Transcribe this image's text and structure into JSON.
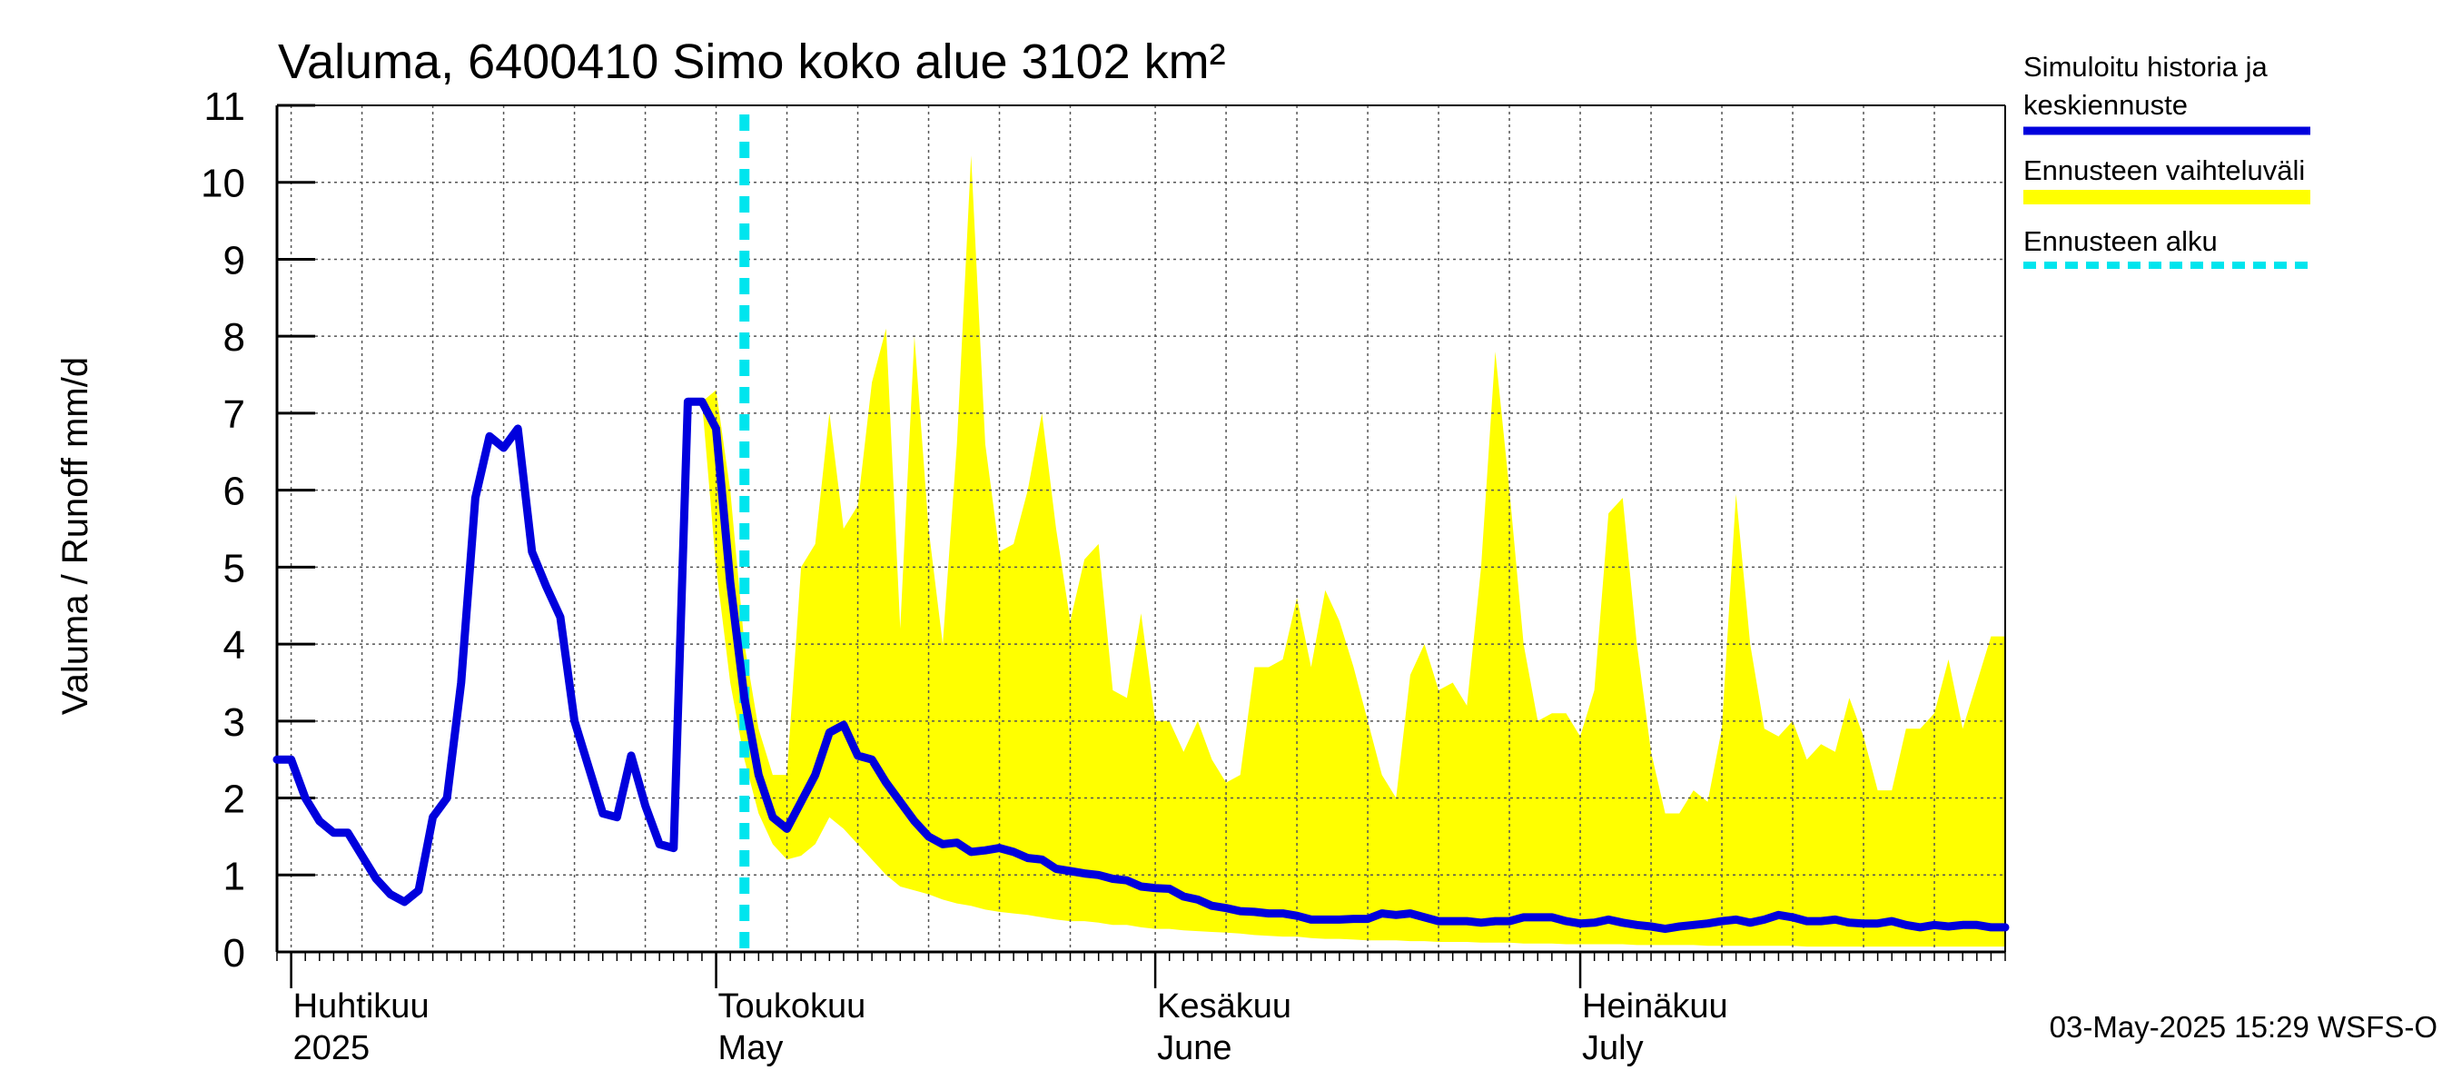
{
  "chart_data": {
    "type": "area",
    "title": "Valuma, 6400410 Simo koko alue 3102 km²",
    "ylabel": "Valuma / Runoff     mm/d",
    "ylim": [
      0,
      11
    ],
    "yticks": [
      0,
      1,
      2,
      3,
      4,
      5,
      6,
      7,
      8,
      9,
      10,
      11
    ],
    "xlim": [
      "2025-03-31",
      "2025-07-31"
    ],
    "forecast_start": "2025-05-03",
    "grid": true,
    "legend_placement": "right",
    "month_labels": [
      {
        "date": "2025-04-01",
        "fi": "Huhtikuu",
        "en": "2025"
      },
      {
        "date": "2025-05-01",
        "fi": "Toukokuu",
        "en": "May"
      },
      {
        "date": "2025-06-01",
        "fi": "Kesäkuu",
        "en": "June"
      },
      {
        "date": "2025-07-01",
        "fi": "Heinäkuu",
        "en": "July"
      }
    ],
    "series": [
      {
        "name": "Simuloitu historia ja keskiennuste",
        "color": "#0000dd",
        "points": [
          [
            "2025-03-31",
            2.5
          ],
          [
            "2025-04-01",
            2.5
          ],
          [
            "2025-04-02",
            2.0
          ],
          [
            "2025-04-03",
            1.7
          ],
          [
            "2025-04-04",
            1.55
          ],
          [
            "2025-04-05",
            1.55
          ],
          [
            "2025-04-06",
            1.25
          ],
          [
            "2025-04-07",
            0.95
          ],
          [
            "2025-04-08",
            0.75
          ],
          [
            "2025-04-09",
            0.65
          ],
          [
            "2025-04-10",
            0.8
          ],
          [
            "2025-04-11",
            1.75
          ],
          [
            "2025-04-12",
            2.0
          ],
          [
            "2025-04-13",
            3.5
          ],
          [
            "2025-04-14",
            5.9
          ],
          [
            "2025-04-15",
            6.7
          ],
          [
            "2025-04-16",
            6.55
          ],
          [
            "2025-04-17",
            6.8
          ],
          [
            "2025-04-18",
            5.2
          ],
          [
            "2025-04-19",
            4.75
          ],
          [
            "2025-04-20",
            4.35
          ],
          [
            "2025-04-21",
            3.0
          ],
          [
            "2025-04-22",
            2.4
          ],
          [
            "2025-04-23",
            1.8
          ],
          [
            "2025-04-24",
            1.75
          ],
          [
            "2025-04-25",
            2.55
          ],
          [
            "2025-04-26",
            1.9
          ],
          [
            "2025-04-27",
            1.4
          ],
          [
            "2025-04-28",
            1.35
          ],
          [
            "2025-04-29",
            7.15
          ],
          [
            "2025-04-30",
            7.15
          ],
          [
            "2025-05-01",
            6.8
          ],
          [
            "2025-05-02",
            4.8
          ],
          [
            "2025-05-03",
            3.3
          ],
          [
            "2025-05-04",
            2.3
          ],
          [
            "2025-05-05",
            1.75
          ],
          [
            "2025-05-06",
            1.6
          ],
          [
            "2025-05-07",
            1.95
          ],
          [
            "2025-05-08",
            2.3
          ],
          [
            "2025-05-09",
            2.85
          ],
          [
            "2025-05-10",
            2.95
          ],
          [
            "2025-05-11",
            2.55
          ],
          [
            "2025-05-12",
            2.5
          ],
          [
            "2025-05-13",
            2.2
          ],
          [
            "2025-05-14",
            1.95
          ],
          [
            "2025-05-15",
            1.7
          ],
          [
            "2025-05-16",
            1.5
          ],
          [
            "2025-05-17",
            1.4
          ],
          [
            "2025-05-18",
            1.42
          ],
          [
            "2025-05-19",
            1.3
          ],
          [
            "2025-05-20",
            1.32
          ],
          [
            "2025-05-21",
            1.35
          ],
          [
            "2025-05-22",
            1.3
          ],
          [
            "2025-05-23",
            1.22
          ],
          [
            "2025-05-24",
            1.2
          ],
          [
            "2025-05-25",
            1.08
          ],
          [
            "2025-05-26",
            1.05
          ],
          [
            "2025-05-27",
            1.02
          ],
          [
            "2025-05-28",
            1.0
          ],
          [
            "2025-05-29",
            0.95
          ],
          [
            "2025-05-30",
            0.93
          ],
          [
            "2025-05-31",
            0.85
          ],
          [
            "2025-06-01",
            0.83
          ],
          [
            "2025-06-02",
            0.82
          ],
          [
            "2025-06-03",
            0.72
          ],
          [
            "2025-06-04",
            0.68
          ],
          [
            "2025-06-05",
            0.6
          ],
          [
            "2025-06-06",
            0.57
          ],
          [
            "2025-06-07",
            0.53
          ],
          [
            "2025-06-08",
            0.52
          ],
          [
            "2025-06-09",
            0.5
          ],
          [
            "2025-06-10",
            0.5
          ],
          [
            "2025-06-11",
            0.47
          ],
          [
            "2025-06-12",
            0.42
          ],
          [
            "2025-06-13",
            0.42
          ],
          [
            "2025-06-14",
            0.42
          ],
          [
            "2025-06-15",
            0.43
          ],
          [
            "2025-06-16",
            0.43
          ],
          [
            "2025-06-17",
            0.5
          ],
          [
            "2025-06-18",
            0.48
          ],
          [
            "2025-06-19",
            0.5
          ],
          [
            "2025-06-20",
            0.45
          ],
          [
            "2025-06-21",
            0.4
          ],
          [
            "2025-06-22",
            0.4
          ],
          [
            "2025-06-23",
            0.4
          ],
          [
            "2025-06-24",
            0.38
          ],
          [
            "2025-06-25",
            0.4
          ],
          [
            "2025-06-26",
            0.4
          ],
          [
            "2025-06-27",
            0.45
          ],
          [
            "2025-06-28",
            0.45
          ],
          [
            "2025-06-29",
            0.45
          ],
          [
            "2025-06-30",
            0.4
          ],
          [
            "2025-07-01",
            0.37
          ],
          [
            "2025-07-02",
            0.38
          ],
          [
            "2025-07-03",
            0.42
          ],
          [
            "2025-07-04",
            0.38
          ],
          [
            "2025-07-05",
            0.35
          ],
          [
            "2025-07-06",
            0.33
          ],
          [
            "2025-07-07",
            0.3
          ],
          [
            "2025-07-08",
            0.33
          ],
          [
            "2025-07-09",
            0.35
          ],
          [
            "2025-07-10",
            0.37
          ],
          [
            "2025-07-11",
            0.4
          ],
          [
            "2025-07-12",
            0.42
          ],
          [
            "2025-07-13",
            0.38
          ],
          [
            "2025-07-14",
            0.42
          ],
          [
            "2025-07-15",
            0.48
          ],
          [
            "2025-07-16",
            0.45
          ],
          [
            "2025-07-17",
            0.4
          ],
          [
            "2025-07-18",
            0.4
          ],
          [
            "2025-07-19",
            0.42
          ],
          [
            "2025-07-20",
            0.38
          ],
          [
            "2025-07-21",
            0.37
          ],
          [
            "2025-07-22",
            0.37
          ],
          [
            "2025-07-23",
            0.4
          ],
          [
            "2025-07-24",
            0.35
          ],
          [
            "2025-07-25",
            0.32
          ],
          [
            "2025-07-26",
            0.35
          ],
          [
            "2025-07-27",
            0.33
          ],
          [
            "2025-07-28",
            0.35
          ],
          [
            "2025-07-29",
            0.35
          ],
          [
            "2025-07-30",
            0.32
          ],
          [
            "2025-07-31",
            0.32
          ]
        ]
      },
      {
        "name": "Ennusteen vaihteluväli",
        "color": "#ffff00",
        "type": "band",
        "points": [
          [
            "2025-04-30",
            7.15,
            7.15
          ],
          [
            "2025-05-01",
            5.0,
            7.3
          ],
          [
            "2025-05-02",
            3.5,
            6.0
          ],
          [
            "2025-05-03",
            2.5,
            4.0
          ],
          [
            "2025-05-04",
            1.8,
            2.9
          ],
          [
            "2025-05-05",
            1.4,
            2.3
          ],
          [
            "2025-05-06",
            1.2,
            2.3
          ],
          [
            "2025-05-07",
            1.25,
            5.0
          ],
          [
            "2025-05-08",
            1.4,
            5.3
          ],
          [
            "2025-05-09",
            1.75,
            7.0
          ],
          [
            "2025-05-10",
            1.6,
            5.5
          ],
          [
            "2025-05-11",
            1.4,
            5.8
          ],
          [
            "2025-05-12",
            1.2,
            7.4
          ],
          [
            "2025-05-13",
            1.0,
            8.1
          ],
          [
            "2025-05-14",
            0.85,
            4.2
          ],
          [
            "2025-05-15",
            0.8,
            8.0
          ],
          [
            "2025-05-16",
            0.75,
            5.5
          ],
          [
            "2025-05-17",
            0.68,
            4.0
          ],
          [
            "2025-05-18",
            0.63,
            6.6
          ],
          [
            "2025-05-19",
            0.6,
            10.35
          ],
          [
            "2025-05-20",
            0.55,
            6.6
          ],
          [
            "2025-05-21",
            0.52,
            5.2
          ],
          [
            "2025-05-22",
            0.5,
            5.3
          ],
          [
            "2025-05-23",
            0.48,
            6.0
          ],
          [
            "2025-05-24",
            0.45,
            7.0
          ],
          [
            "2025-05-25",
            0.42,
            5.5
          ],
          [
            "2025-05-26",
            0.4,
            4.3
          ],
          [
            "2025-05-27",
            0.4,
            5.1
          ],
          [
            "2025-05-28",
            0.38,
            5.3
          ],
          [
            "2025-05-29",
            0.35,
            3.4
          ],
          [
            "2025-05-30",
            0.35,
            3.3
          ],
          [
            "2025-05-31",
            0.32,
            4.4
          ],
          [
            "2025-06-01",
            0.3,
            3.0
          ],
          [
            "2025-06-02",
            0.3,
            3.0
          ],
          [
            "2025-06-03",
            0.28,
            2.6
          ],
          [
            "2025-06-04",
            0.27,
            3.0
          ],
          [
            "2025-06-05",
            0.26,
            2.5
          ],
          [
            "2025-06-06",
            0.25,
            2.2
          ],
          [
            "2025-06-07",
            0.24,
            2.3
          ],
          [
            "2025-06-08",
            0.22,
            3.7
          ],
          [
            "2025-06-09",
            0.21,
            3.7
          ],
          [
            "2025-06-10",
            0.2,
            3.8
          ],
          [
            "2025-06-11",
            0.2,
            4.6
          ],
          [
            "2025-06-12",
            0.18,
            3.7
          ],
          [
            "2025-06-13",
            0.17,
            4.7
          ],
          [
            "2025-06-14",
            0.17,
            4.3
          ],
          [
            "2025-06-15",
            0.16,
            3.7
          ],
          [
            "2025-06-16",
            0.15,
            3.0
          ],
          [
            "2025-06-17",
            0.15,
            2.3
          ],
          [
            "2025-06-18",
            0.15,
            2.0
          ],
          [
            "2025-06-19",
            0.14,
            3.6
          ],
          [
            "2025-06-20",
            0.14,
            4.0
          ],
          [
            "2025-06-21",
            0.13,
            3.4
          ],
          [
            "2025-06-22",
            0.13,
            3.5
          ],
          [
            "2025-06-23",
            0.13,
            3.2
          ],
          [
            "2025-06-24",
            0.12,
            5.0
          ],
          [
            "2025-06-25",
            0.12,
            7.8
          ],
          [
            "2025-06-26",
            0.12,
            6.0
          ],
          [
            "2025-06-27",
            0.11,
            4.0
          ],
          [
            "2025-06-28",
            0.11,
            3.0
          ],
          [
            "2025-06-29",
            0.11,
            3.1
          ],
          [
            "2025-06-30",
            0.1,
            3.1
          ],
          [
            "2025-07-01",
            0.1,
            2.8
          ],
          [
            "2025-07-02",
            0.1,
            3.4
          ],
          [
            "2025-07-03",
            0.1,
            5.7
          ],
          [
            "2025-07-04",
            0.1,
            5.9
          ],
          [
            "2025-07-05",
            0.09,
            4.0
          ],
          [
            "2025-07-06",
            0.09,
            2.6
          ],
          [
            "2025-07-07",
            0.09,
            1.8
          ],
          [
            "2025-07-08",
            0.09,
            1.8
          ],
          [
            "2025-07-09",
            0.09,
            2.1
          ],
          [
            "2025-07-10",
            0.08,
            1.95
          ],
          [
            "2025-07-11",
            0.08,
            2.9
          ],
          [
            "2025-07-12",
            0.08,
            5.95
          ],
          [
            "2025-07-13",
            0.08,
            4.0
          ],
          [
            "2025-07-14",
            0.08,
            2.9
          ],
          [
            "2025-07-15",
            0.08,
            2.8
          ],
          [
            "2025-07-16",
            0.08,
            3.0
          ],
          [
            "2025-07-17",
            0.07,
            2.5
          ],
          [
            "2025-07-18",
            0.07,
            2.7
          ],
          [
            "2025-07-19",
            0.07,
            2.6
          ],
          [
            "2025-07-20",
            0.07,
            3.3
          ],
          [
            "2025-07-21",
            0.07,
            2.8
          ],
          [
            "2025-07-22",
            0.07,
            2.1
          ],
          [
            "2025-07-23",
            0.07,
            2.1
          ],
          [
            "2025-07-24",
            0.07,
            2.9
          ],
          [
            "2025-07-25",
            0.07,
            2.9
          ],
          [
            "2025-07-26",
            0.07,
            3.1
          ],
          [
            "2025-07-27",
            0.07,
            3.8
          ],
          [
            "2025-07-28",
            0.07,
            2.9
          ],
          [
            "2025-07-29",
            0.07,
            3.5
          ],
          [
            "2025-07-30",
            0.07,
            4.1
          ],
          [
            "2025-07-31",
            0.07,
            4.1
          ]
        ]
      },
      {
        "name": "Ennusteen alku",
        "color": "#00e5ee",
        "type": "vline",
        "date": "2025-05-03"
      }
    ],
    "legend": [
      {
        "label": "Simuloitu historia ja keskiennuste",
        "color": "#0000dd",
        "style": "solid"
      },
      {
        "label": "Ennusteen vaihteluväli",
        "color": "#ffff00",
        "style": "band"
      },
      {
        "label": "Ennusteen alku",
        "color": "#00e5ee",
        "style": "dashed"
      }
    ],
    "timestamp": "03-May-2025 15:29 WSFS-O"
  }
}
